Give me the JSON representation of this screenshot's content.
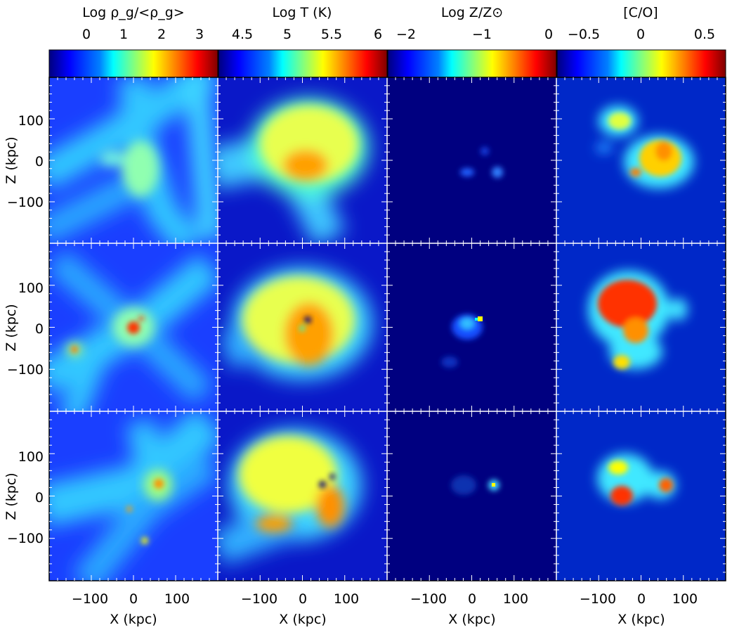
{
  "figure": {
    "colorbars": [
      {
        "label": "Log ρ_g/<ρ_g>",
        "ticks": [
          "0",
          "1",
          "2",
          "3"
        ]
      },
      {
        "label": "Log T (K)",
        "ticks": [
          "4.5",
          "5",
          "5.5",
          "6"
        ]
      },
      {
        "label": "Log Z/Z⊙",
        "ticks": [
          "−2",
          "−1",
          "0"
        ]
      },
      {
        "label": "[C/O]",
        "ticks": [
          "−0.5",
          "0",
          "0.5"
        ]
      }
    ],
    "y_axis_label": "Z (kpc)",
    "x_axis_label": "X (kpc)",
    "y_ticks": [
      "100",
      "0",
      "−100"
    ],
    "x_ticks": [
      "−100",
      "0",
      "100"
    ],
    "colormap": [
      "#00007f",
      "#0000ff",
      "#0080ff",
      "#00ffff",
      "#80ff80",
      "#ffff00",
      "#ff8000",
      "#ff0000",
      "#7f0000"
    ],
    "rows": 3,
    "columns": 4
  }
}
